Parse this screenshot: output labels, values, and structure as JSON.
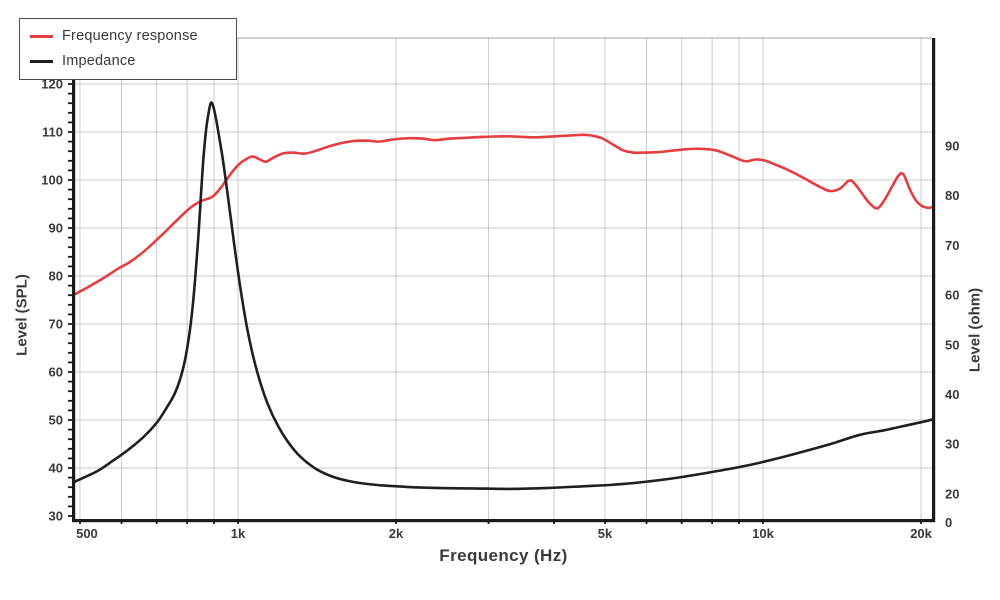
{
  "colors": {
    "frequency_response": "#e53e41",
    "impedance": "#1f1f1f",
    "grid": "#cbcbcb",
    "axis": "#1a1a1a",
    "text": "#3a3a3a",
    "top_border": "#b5b5b5",
    "background": "#ffffff"
  },
  "legend": {
    "items": [
      {
        "label": "Frequency response",
        "color": "#e53e41"
      },
      {
        "label": "Impedance",
        "color": "#1f1f1f"
      }
    ]
  },
  "axis_titles": {
    "x": "Frequency (Hz)",
    "y_left": "Level (SPL)",
    "y_right": "Level (ohm)"
  },
  "chart_data": {
    "type": "line",
    "title": "",
    "grid": "on",
    "legend_position": "top-left",
    "x_axis": {
      "label": "Frequency (Hz)",
      "scale": "log",
      "range_hz": [
        500,
        21000
      ],
      "tick_values": [
        500,
        1000,
        2000,
        5000,
        10000,
        20000
      ],
      "tick_labels": [
        "500",
        "1k",
        "2k",
        "5k",
        "10k",
        "20k"
      ],
      "gridline_values": [
        500,
        600,
        700,
        800,
        900,
        1000,
        2000,
        3000,
        4000,
        5000,
        6000,
        7000,
        8000,
        9000,
        10000,
        20000
      ]
    },
    "y_left_axis": {
      "label": "Level (SPL)",
      "units": "dB",
      "range": [
        30,
        130
      ],
      "tick_values": [
        120,
        110,
        100,
        90,
        80,
        70,
        60,
        50,
        40,
        30
      ],
      "minor_tick_step": 2
    },
    "y_right_axis": {
      "label": "Level (ohm)",
      "units": "ohm",
      "tick_values": [
        90,
        80,
        70,
        60,
        50,
        40,
        30,
        20,
        0
      ]
    },
    "series": [
      {
        "name": "Frequency response",
        "axis": "left",
        "color": "#e53e41",
        "points": [
          [
            487,
            76.1
          ],
          [
            520,
            77.8
          ],
          [
            555,
            79.6
          ],
          [
            590,
            81.5
          ],
          [
            620,
            82.8
          ],
          [
            655,
            84.7
          ],
          [
            690,
            86.9
          ],
          [
            720,
            88.8
          ],
          [
            755,
            91.0
          ],
          [
            790,
            93.1
          ],
          [
            820,
            94.6
          ],
          [
            855,
            95.7
          ],
          [
            890,
            96.4
          ],
          [
            915,
            97.6
          ],
          [
            945,
            99.6
          ],
          [
            975,
            101.7
          ],
          [
            1005,
            103.3
          ],
          [
            1035,
            104.3
          ],
          [
            1065,
            104.9
          ],
          [
            1100,
            104.3
          ],
          [
            1130,
            103.8
          ],
          [
            1170,
            104.7
          ],
          [
            1215,
            105.5
          ],
          [
            1270,
            105.7
          ],
          [
            1340,
            105.5
          ],
          [
            1410,
            106.1
          ],
          [
            1480,
            106.9
          ],
          [
            1560,
            107.6
          ],
          [
            1660,
            108.1
          ],
          [
            1760,
            108.2
          ],
          [
            1860,
            108.0
          ],
          [
            1960,
            108.4
          ],
          [
            2110,
            108.7
          ],
          [
            2260,
            108.6
          ],
          [
            2370,
            108.3
          ],
          [
            2520,
            108.6
          ],
          [
            2720,
            108.8
          ],
          [
            2960,
            109.0
          ],
          [
            3210,
            109.1
          ],
          [
            3460,
            109.0
          ],
          [
            3710,
            108.9
          ],
          [
            4010,
            109.1
          ],
          [
            4310,
            109.3
          ],
          [
            4610,
            109.4
          ],
          [
            4910,
            108.8
          ],
          [
            5160,
            107.5
          ],
          [
            5410,
            106.2
          ],
          [
            5660,
            105.7
          ],
          [
            5910,
            105.7
          ],
          [
            6310,
            105.8
          ],
          [
            6710,
            106.1
          ],
          [
            7110,
            106.4
          ],
          [
            7610,
            106.5
          ],
          [
            8110,
            106.2
          ],
          [
            8610,
            105.2
          ],
          [
            9010,
            104.3
          ],
          [
            9310,
            103.9
          ],
          [
            9710,
            104.3
          ],
          [
            10110,
            104.0
          ],
          [
            10610,
            103.1
          ],
          [
            11210,
            102.0
          ],
          [
            12010,
            100.3
          ],
          [
            12810,
            98.6
          ],
          [
            13410,
            97.7
          ],
          [
            14010,
            98.2
          ],
          [
            14610,
            99.9
          ],
          [
            15010,
            99.0
          ],
          [
            15510,
            96.9
          ],
          [
            16010,
            95.0
          ],
          [
            16510,
            94.1
          ],
          [
            17010,
            95.7
          ],
          [
            17610,
            98.6
          ],
          [
            18110,
            100.9
          ],
          [
            18510,
            101.2
          ],
          [
            19010,
            98.2
          ],
          [
            19510,
            95.9
          ],
          [
            20010,
            94.7
          ],
          [
            20610,
            94.2
          ],
          [
            21100,
            94.4
          ]
        ]
      },
      {
        "name": "Impedance",
        "axis": "right",
        "color": "#1f1f1f",
        "points": [
          [
            487,
            22.4
          ],
          [
            540,
            24.6
          ],
          [
            580,
            26.8
          ],
          [
            620,
            29.0
          ],
          [
            660,
            31.4
          ],
          [
            700,
            34.3
          ],
          [
            730,
            37.2
          ],
          [
            760,
            40.5
          ],
          [
            785,
            45.0
          ],
          [
            805,
            51.0
          ],
          [
            822,
            59.0
          ],
          [
            838,
            70.0
          ],
          [
            850,
            80.0
          ],
          [
            860,
            88.0
          ],
          [
            870,
            93.5
          ],
          [
            880,
            97.0
          ],
          [
            888,
            98.7
          ],
          [
            897,
            98.0
          ],
          [
            908,
            95.5
          ],
          [
            920,
            92.0
          ],
          [
            935,
            87.5
          ],
          [
            952,
            81.5
          ],
          [
            970,
            75.0
          ],
          [
            990,
            68.0
          ],
          [
            1012,
            61.0
          ],
          [
            1038,
            54.0
          ],
          [
            1068,
            47.8
          ],
          [
            1100,
            42.8
          ],
          [
            1140,
            38.0
          ],
          [
            1190,
            33.8
          ],
          [
            1250,
            30.2
          ],
          [
            1320,
            27.3
          ],
          [
            1410,
            25.0
          ],
          [
            1520,
            23.4
          ],
          [
            1660,
            22.4
          ],
          [
            1840,
            21.8
          ],
          [
            2100,
            21.4
          ],
          [
            2400,
            21.2
          ],
          [
            2800,
            21.1
          ],
          [
            3300,
            21.0
          ],
          [
            3900,
            21.2
          ],
          [
            4500,
            21.5
          ],
          [
            5100,
            21.8
          ],
          [
            5800,
            22.3
          ],
          [
            6600,
            23.0
          ],
          [
            7500,
            23.9
          ],
          [
            8500,
            24.9
          ],
          [
            9600,
            26.0
          ],
          [
            10800,
            27.3
          ],
          [
            12200,
            28.8
          ],
          [
            13700,
            30.3
          ],
          [
            15300,
            31.9
          ],
          [
            17000,
            32.8
          ],
          [
            19000,
            33.9
          ],
          [
            21100,
            35.0
          ]
        ]
      }
    ]
  }
}
